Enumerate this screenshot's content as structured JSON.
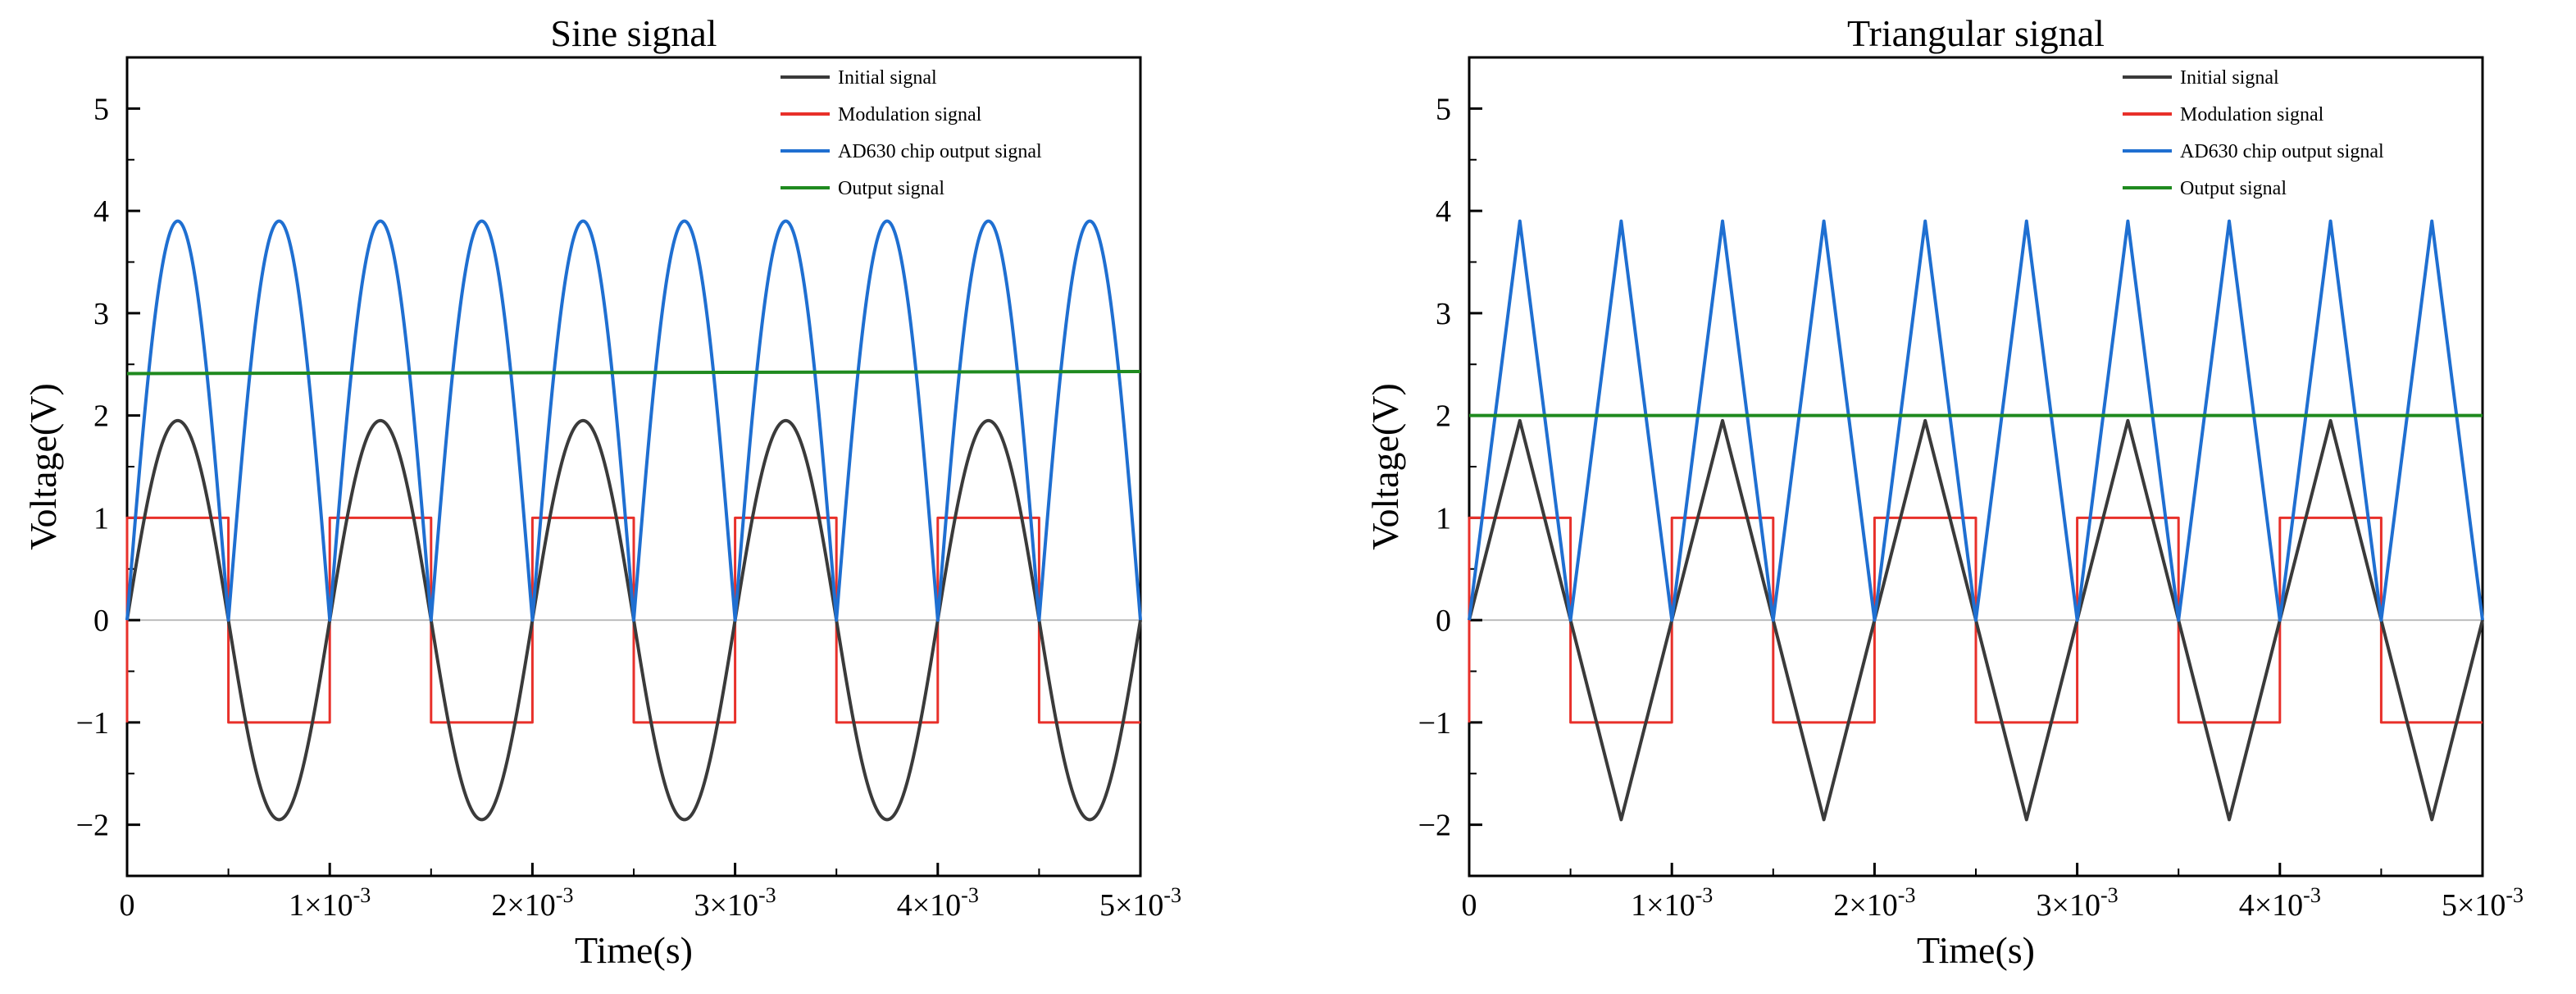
{
  "chart_data": [
    {
      "type": "line",
      "title": "Sine signal",
      "xlabel": "Time(s)",
      "ylabel": "Voltage(V)",
      "xlim": [
        0,
        0.005
      ],
      "ylim": [
        -2.5,
        5.5
      ],
      "x_ticks": [
        {
          "value": 0,
          "label": "0",
          "exp": ""
        },
        {
          "value": 0.001,
          "label": "1×10",
          "exp": "-3"
        },
        {
          "value": 0.002,
          "label": "2×10",
          "exp": "-3"
        },
        {
          "value": 0.003,
          "label": "3×10",
          "exp": "-3"
        },
        {
          "value": 0.004,
          "label": "4×10",
          "exp": "-3"
        },
        {
          "value": 0.005,
          "label": "5×10",
          "exp": "-3"
        }
      ],
      "y_ticks": [
        {
          "value": -2,
          "label": "−2"
        },
        {
          "value": -1,
          "label": "−1"
        },
        {
          "value": 0,
          "label": "0"
        },
        {
          "value": 1,
          "label": "1"
        },
        {
          "value": 2,
          "label": "2"
        },
        {
          "value": 3,
          "label": "3"
        },
        {
          "value": 4,
          "label": "4"
        },
        {
          "value": 5,
          "label": "5"
        }
      ],
      "period": 0.001,
      "initial_amplitude": 1.95,
      "ad630_amplitude": 3.9,
      "output_level_start": 2.41,
      "output_level_end": 2.43,
      "modulation_levels": [
        1,
        -1
      ],
      "legend_position": "top-right",
      "series": [
        {
          "name": "Initial signal",
          "color": "#3a3a3a",
          "waveform": "sine",
          "x": [
            0,
            0.00025,
            0.0005,
            0.00075,
            0.001
          ],
          "values": [
            0,
            1.95,
            0,
            -1.95,
            0
          ]
        },
        {
          "name": "Modulation signal",
          "color": "#e8302a",
          "waveform": "square",
          "x": [
            0,
            0.0005,
            0.001
          ],
          "values": [
            1,
            -1,
            1
          ]
        },
        {
          "name": "AD630 chip output signal",
          "color": "#1f6fd1",
          "waveform": "rectified-sine",
          "x": [
            0,
            0.00025,
            0.0005
          ],
          "values": [
            0,
            3.9,
            0
          ]
        },
        {
          "name": "Output signal",
          "color": "#1f8a1f",
          "waveform": "dc",
          "x": [
            0,
            0.005
          ],
          "values": [
            2.41,
            2.43
          ]
        }
      ]
    },
    {
      "type": "line",
      "title": "Triangular signal",
      "xlabel": "Time(s)",
      "ylabel": "Voltage(V)",
      "xlim": [
        0,
        0.005
      ],
      "ylim": [
        -2.5,
        5.5
      ],
      "x_ticks": [
        {
          "value": 0,
          "label": "0",
          "exp": ""
        },
        {
          "value": 0.001,
          "label": "1×10",
          "exp": "-3"
        },
        {
          "value": 0.002,
          "label": "2×10",
          "exp": "-3"
        },
        {
          "value": 0.003,
          "label": "3×10",
          "exp": "-3"
        },
        {
          "value": 0.004,
          "label": "4×10",
          "exp": "-3"
        },
        {
          "value": 0.005,
          "label": "5×10",
          "exp": "-3"
        }
      ],
      "y_ticks": [
        {
          "value": -2,
          "label": "−2"
        },
        {
          "value": -1,
          "label": "−1"
        },
        {
          "value": 0,
          "label": "0"
        },
        {
          "value": 1,
          "label": "1"
        },
        {
          "value": 2,
          "label": "2"
        },
        {
          "value": 3,
          "label": "3"
        },
        {
          "value": 4,
          "label": "4"
        },
        {
          "value": 5,
          "label": "5"
        }
      ],
      "period": 0.001,
      "initial_amplitude": 1.95,
      "ad630_amplitude": 3.9,
      "output_level_start": 2.0,
      "output_level_end": 2.0,
      "modulation_levels": [
        1,
        -1
      ],
      "legend_position": "top-right",
      "series": [
        {
          "name": "Initial signal",
          "color": "#3a3a3a",
          "waveform": "triangle",
          "x": [
            0,
            0.00025,
            0.0005,
            0.00075,
            0.001
          ],
          "values": [
            0,
            1.95,
            0,
            -1.95,
            0
          ]
        },
        {
          "name": "Modulation signal",
          "color": "#e8302a",
          "waveform": "square",
          "x": [
            0,
            0.0005,
            0.001
          ],
          "values": [
            1,
            -1,
            1
          ]
        },
        {
          "name": "AD630 chip output signal",
          "color": "#1f6fd1",
          "waveform": "rectified-triangle",
          "x": [
            0,
            0.00025,
            0.0005
          ],
          "values": [
            0,
            3.9,
            0
          ]
        },
        {
          "name": "Output signal",
          "color": "#1f8a1f",
          "waveform": "dc",
          "x": [
            0,
            0.005
          ],
          "values": [
            2.0,
            2.0
          ]
        }
      ]
    }
  ]
}
